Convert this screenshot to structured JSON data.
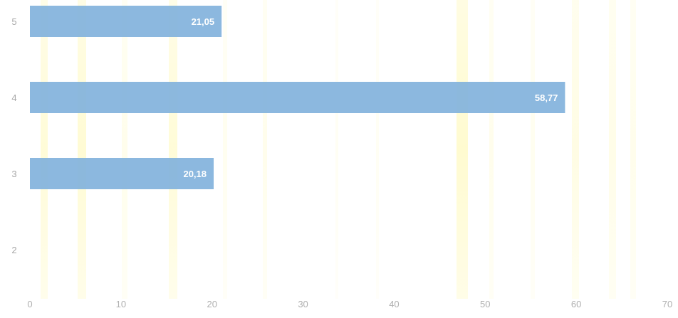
{
  "chart_data": {
    "type": "bar",
    "orientation": "horizontal",
    "categories": [
      "5",
      "4",
      "3",
      "2"
    ],
    "values": [
      21.05,
      58.77,
      20.18,
      null
    ],
    "value_labels": [
      "21,05",
      "58,77",
      "20,18",
      ""
    ],
    "xlim": [
      0,
      70
    ],
    "xticks": [
      0,
      10,
      20,
      30,
      40,
      50,
      60,
      70
    ],
    "xtick_labels": [
      "0",
      "10",
      "20",
      "30",
      "40",
      "50",
      "60",
      "70"
    ],
    "grid": false,
    "legend": "none",
    "colors": {
      "bar": "#82b2dc",
      "background": "#ffffff",
      "highlight_stripes": "#fff7a8"
    }
  }
}
